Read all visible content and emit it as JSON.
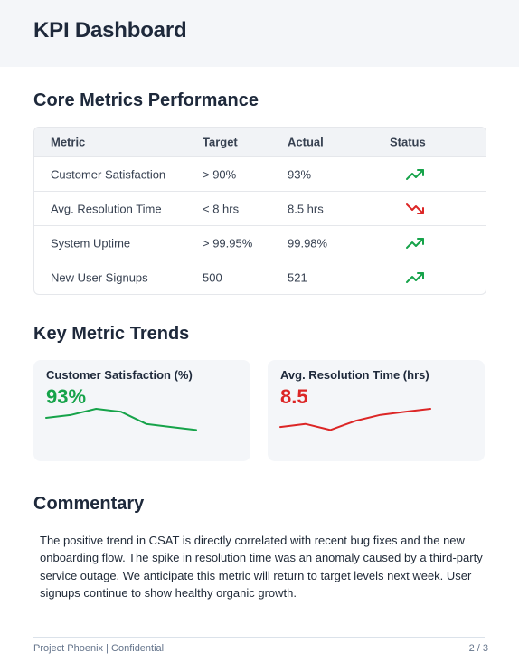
{
  "header": {
    "title": "KPI Dashboard"
  },
  "core_metrics": {
    "heading": "Core Metrics Performance",
    "columns": [
      "Metric",
      "Target",
      "Actual",
      "Status"
    ],
    "rows": [
      {
        "metric": "Customer Satisfaction",
        "target": "> 90%",
        "actual": "93%",
        "status_icon": "trending-up-icon",
        "status_color": "#16a34a"
      },
      {
        "metric": "Avg. Resolution Time",
        "target": "< 8 hrs",
        "actual": "8.5 hrs",
        "status_icon": "trending-down-icon",
        "status_color": "#dc2626"
      },
      {
        "metric": "System Uptime",
        "target": "> 99.95%",
        "actual": "99.98%",
        "status_icon": "trending-up-icon",
        "status_color": "#16a34a"
      },
      {
        "metric": "New User Signups",
        "target": "500",
        "actual": "521",
        "status_icon": "trending-up-icon",
        "status_color": "#16a34a"
      }
    ]
  },
  "trends": {
    "heading": "Key Metric Trends",
    "cards": [
      {
        "title": "Customer Satisfaction (%)",
        "value": "93%",
        "color": "#16a34a"
      },
      {
        "title": "Avg. Resolution Time (hrs)",
        "value": "8.5",
        "color": "#dc2626"
      }
    ]
  },
  "chart_data": [
    {
      "type": "line",
      "series": [
        {
          "values": [
            4,
            5,
            7,
            6,
            2,
            1,
            0
          ]
        }
      ]
    },
    {
      "type": "line",
      "series": [
        {
          "values": [
            1,
            2,
            0,
            3,
            5,
            6,
            7
          ]
        }
      ]
    }
  ],
  "commentary": {
    "heading": "Commentary",
    "text": "The positive trend in CSAT is directly correlated with recent bug fixes and the new onboarding flow. The spike in resolution time was an anomaly caused by a third-party service outage. We anticipate this metric will return to target levels next week. User signups continue to show healthy organic growth."
  },
  "footer": {
    "left": "Project Phoenix | Confidential",
    "right": "2 / 3"
  }
}
